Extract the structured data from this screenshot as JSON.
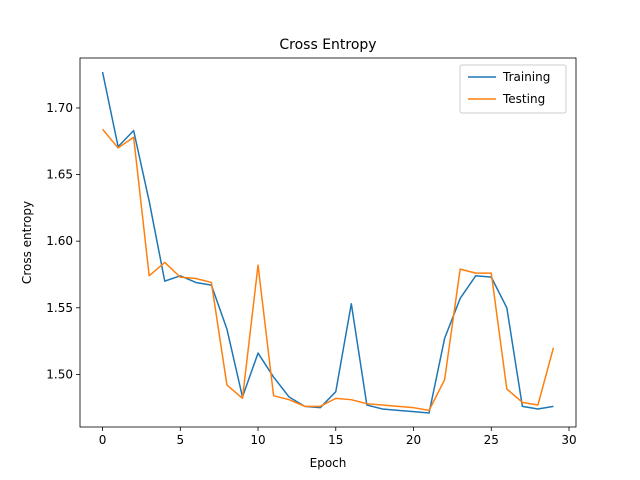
{
  "chart_data": {
    "type": "line",
    "title": "Cross Entropy",
    "xlabel": "Epoch",
    "ylabel": "Cross entropy",
    "xlim": [
      -1.45,
      30.45
    ],
    "ylim": [
      1.4605,
      1.7375
    ],
    "xticks": [
      0,
      5,
      10,
      15,
      20,
      25,
      30
    ],
    "xtick_labels": [
      "0",
      "5",
      "10",
      "15",
      "20",
      "25",
      "30"
    ],
    "yticks": [
      1.5,
      1.55,
      1.6,
      1.65,
      1.7
    ],
    "ytick_labels": [
      "1.50",
      "1.55",
      "1.60",
      "1.65",
      "1.70"
    ],
    "grid": false,
    "legend_position": "top-right",
    "x": [
      0,
      1,
      2,
      3,
      4,
      5,
      6,
      7,
      8,
      9,
      10,
      11,
      12,
      13,
      14,
      15,
      16,
      17,
      18,
      19,
      20,
      21,
      22,
      23,
      24,
      25,
      26,
      27,
      28,
      29
    ],
    "series": [
      {
        "name": "Training",
        "color": "#1f77b4",
        "values": [
          1.727,
          1.671,
          1.683,
          1.63,
          1.57,
          1.574,
          1.569,
          1.567,
          1.534,
          1.483,
          1.516,
          1.498,
          1.483,
          1.476,
          1.475,
          1.487,
          1.553,
          1.477,
          1.474,
          1.473,
          1.472,
          1.471,
          1.527,
          1.557,
          1.574,
          1.573,
          1.55,
          1.476,
          1.474,
          1.476
        ]
      },
      {
        "name": "Testing",
        "color": "#ff7f0e",
        "values": [
          1.684,
          1.67,
          1.678,
          1.574,
          1.584,
          1.573,
          1.572,
          1.569,
          1.492,
          1.482,
          1.582,
          1.484,
          1.481,
          1.476,
          1.476,
          1.482,
          1.481,
          1.478,
          1.477,
          1.476,
          1.475,
          1.473,
          1.496,
          1.579,
          1.576,
          1.576,
          1.489,
          1.479,
          1.477,
          1.52
        ]
      }
    ]
  }
}
